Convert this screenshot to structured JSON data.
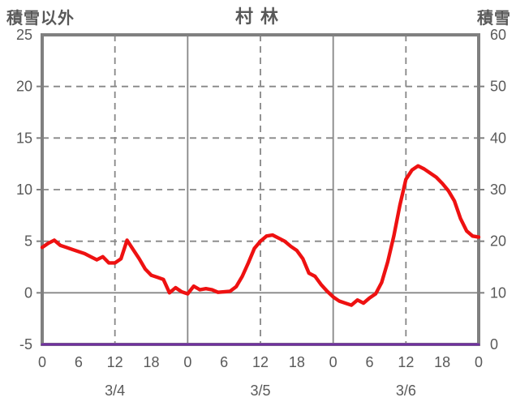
{
  "header": {
    "left_axis_title": "積雪以外",
    "chart_title": "村林",
    "right_axis_title": "積雪"
  },
  "colors": {
    "background": "#ffffff",
    "frame": "#808080",
    "grid": "#878787",
    "text": "#595959",
    "series_red": "#ee1111",
    "series_purple": "#7030a0"
  },
  "chart_data": {
    "type": "line",
    "title": "村林",
    "grid": {
      "horizontal_dashed_left_values": [
        20,
        15,
        10,
        5
      ],
      "horizontal_solid_left_values": [
        0
      ],
      "vertical_dashed_hours": [
        12,
        36,
        60
      ],
      "vertical_solid_hours": [
        24,
        48
      ]
    },
    "x_axis": {
      "unit": "hours",
      "range": [
        0,
        72
      ],
      "tick_step_hours": 6,
      "tick_labels": [
        "0",
        "6",
        "12",
        "18",
        "0",
        "6",
        "12",
        "18",
        "0",
        "6",
        "12",
        "18",
        "0"
      ],
      "day_labels": [
        {
          "label": "3/4",
          "hour": 12
        },
        {
          "label": "3/5",
          "hour": 36
        },
        {
          "label": "3/6",
          "hour": 60
        }
      ]
    },
    "y_left": {
      "label": "積雪以外",
      "min": -5,
      "max": 25,
      "tick_step": 5,
      "tick_labels": [
        "25",
        "20",
        "15",
        "10",
        "5",
        "0",
        "-5"
      ],
      "side_tick_values": [
        20,
        15,
        10,
        5,
        0
      ]
    },
    "y_right": {
      "label": "積雪",
      "min": 0,
      "max": 60,
      "tick_step": 10,
      "tick_labels": [
        "60",
        "50",
        "40",
        "30",
        "20",
        "10",
        "0"
      ]
    },
    "legend": "none",
    "series": [
      {
        "name": "積雪以外",
        "axis": "left",
        "color": "#ee1111",
        "stroke_width": 4.4,
        "x_start_hour": 0,
        "x_step_hours": 1,
        "values": [
          4.4,
          4.8,
          5.1,
          4.6,
          4.4,
          4.2,
          4.0,
          3.8,
          3.5,
          3.2,
          3.5,
          2.9,
          2.9,
          3.3,
          5.1,
          4.2,
          3.3,
          2.3,
          1.7,
          1.5,
          1.3,
          0.0,
          0.5,
          0.1,
          -0.1,
          0.65,
          0.3,
          0.4,
          0.3,
          0.05,
          0.1,
          0.15,
          0.6,
          1.6,
          2.9,
          4.3,
          5.0,
          5.5,
          5.6,
          5.3,
          5.0,
          4.5,
          4.1,
          3.3,
          1.9,
          1.6,
          0.8,
          0.15,
          -0.4,
          -0.8,
          -1.0,
          -1.2,
          -0.7,
          -1.0,
          -0.5,
          -0.1,
          1.0,
          3.0,
          5.5,
          8.5,
          11.0,
          11.9,
          12.3,
          12.0,
          11.6,
          11.2,
          10.6,
          9.9,
          8.9,
          7.2,
          6.0,
          5.5,
          5.4
        ]
      },
      {
        "name": "積雪",
        "axis": "right",
        "color": "#7030a0",
        "stroke_width": 3,
        "x_start_hour": 0,
        "x_step_hours": 72,
        "values": [
          0,
          0
        ]
      }
    ]
  }
}
